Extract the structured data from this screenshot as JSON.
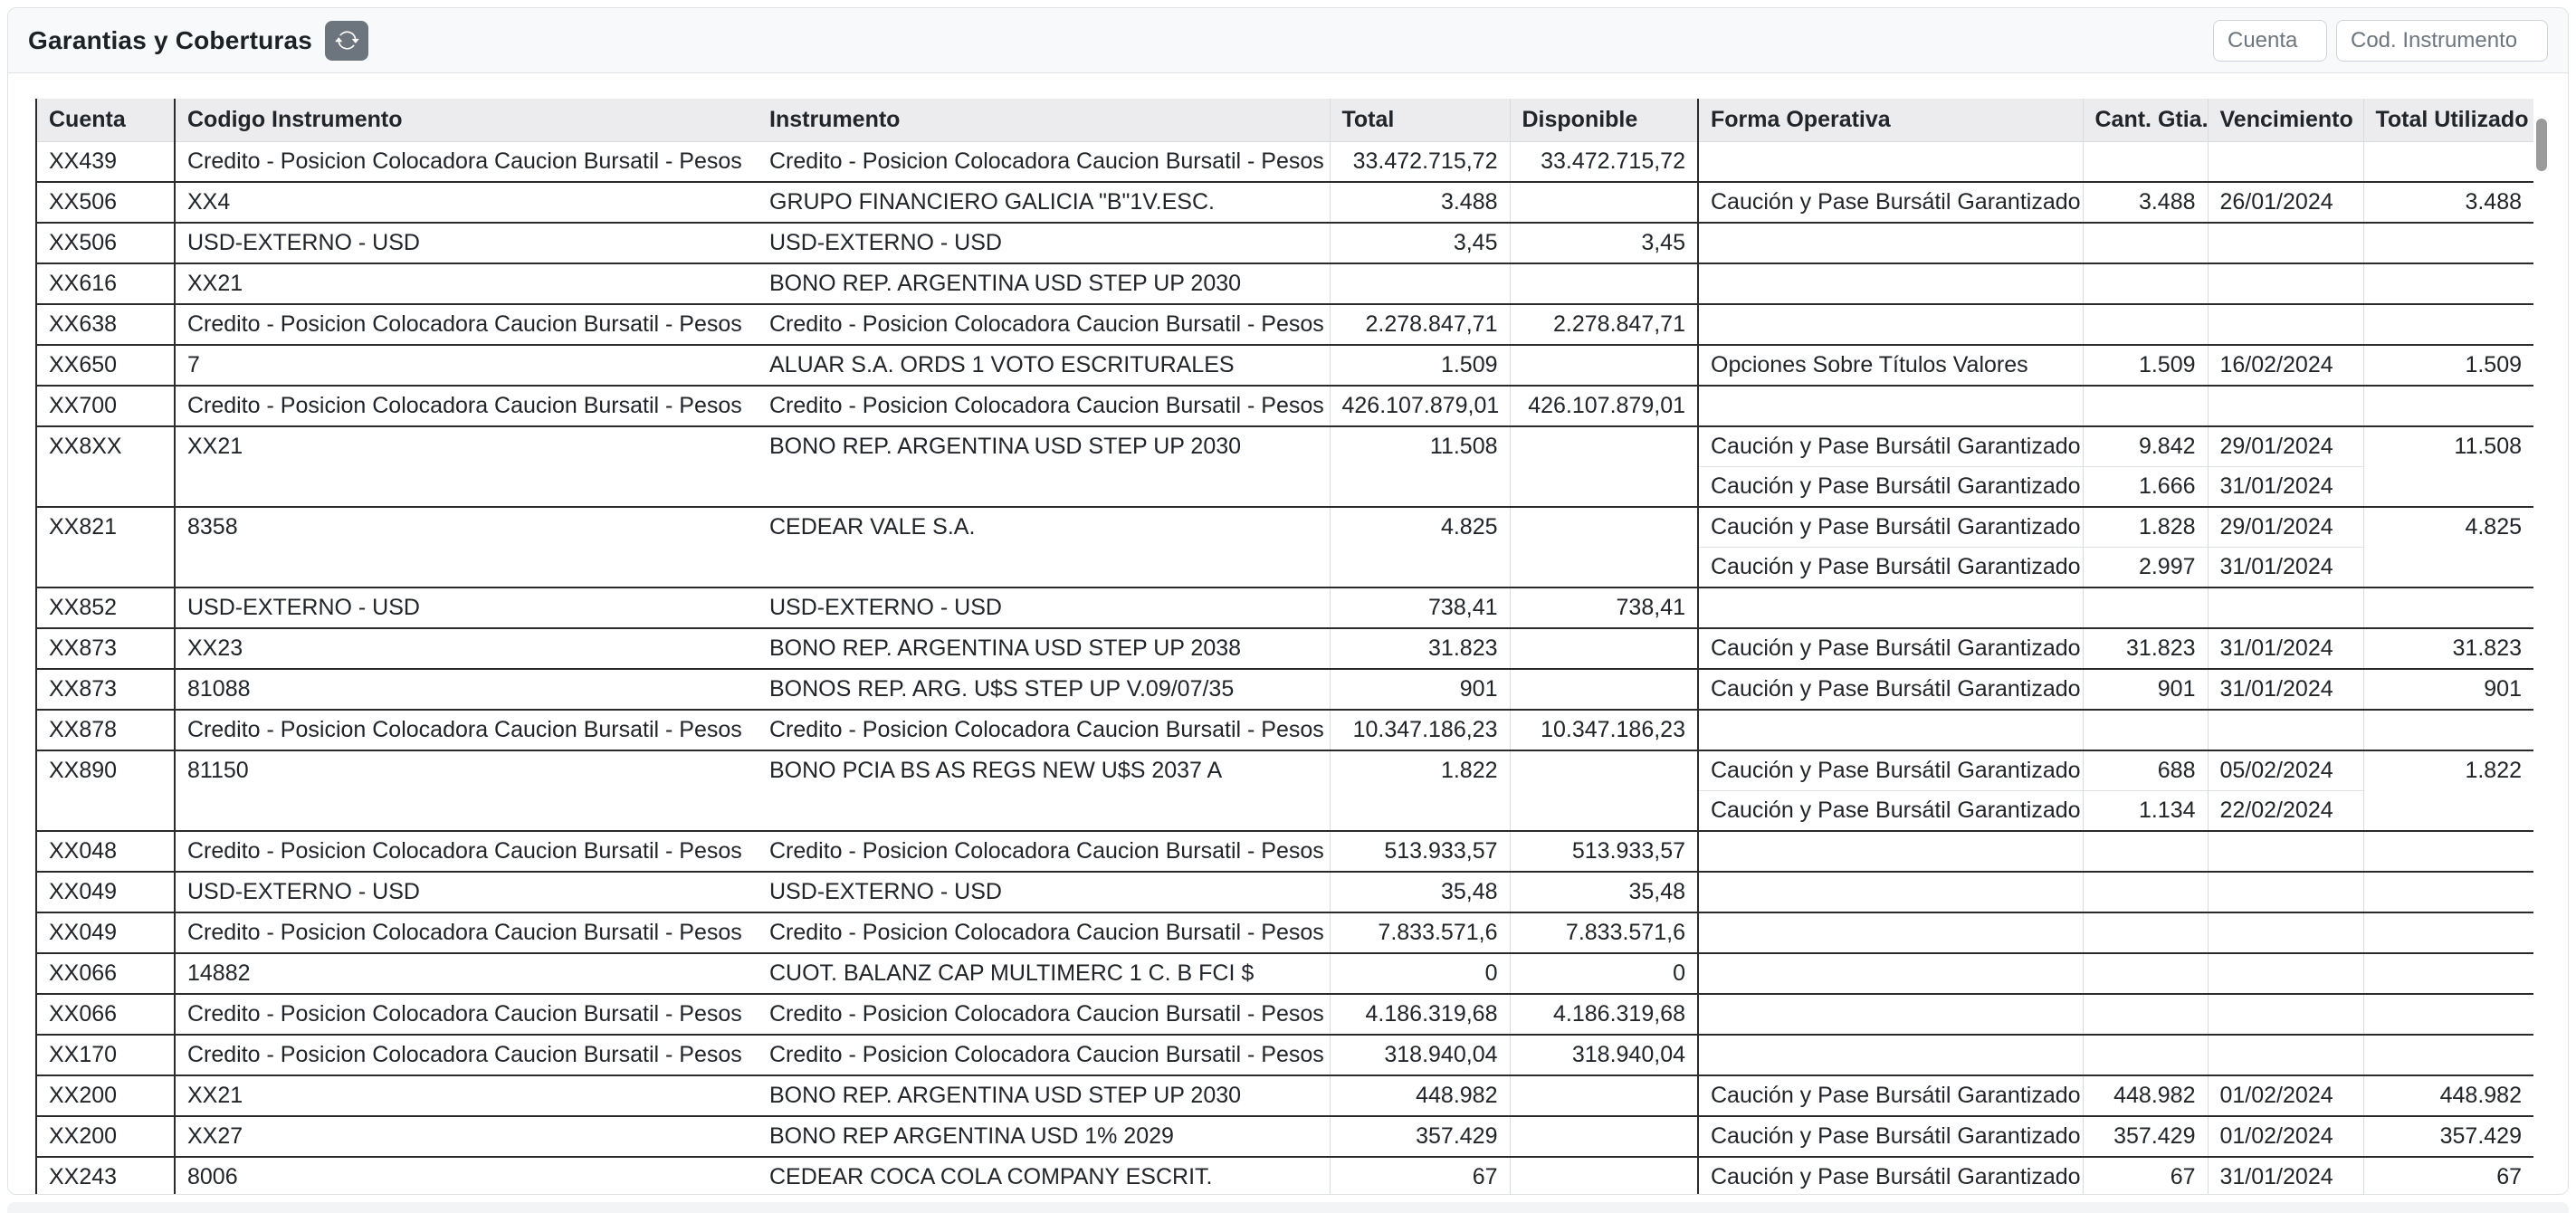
{
  "header": {
    "title": "Garantias y Coberturas",
    "refresh_icon": "refresh-icon",
    "filters": {
      "cuenta_placeholder": "Cuenta",
      "cod_instrumento_placeholder": "Cod. Instrumento"
    }
  },
  "table": {
    "columns": [
      "Cuenta",
      "Codigo Instrumento",
      "Instrumento",
      "Total",
      "Disponible",
      "Forma Operativa",
      "Cant. Gtia.",
      "Vencimiento",
      "Total Utilizado"
    ],
    "rows": [
      {
        "cuenta": "XX439",
        "codigo": "Credito - Posicion Colocadora Caucion Bursatil - Pesos",
        "instrumento": "Credito - Posicion Colocadora Caucion Bursatil - Pesos",
        "total": "33.472.715,72",
        "disponible": "33.472.715,72",
        "total_utilizado": "",
        "operaciones": []
      },
      {
        "cuenta": "XX506",
        "codigo": "XX4",
        "instrumento": "GRUPO FINANCIERO GALICIA \"B\"1V.ESC.",
        "total": "3.488",
        "disponible": "",
        "total_utilizado": "3.488",
        "operaciones": [
          {
            "forma": "Caución y Pase Bursátil Garantizado",
            "cant": "3.488",
            "venc": "26/01/2024"
          }
        ]
      },
      {
        "cuenta": "XX506",
        "codigo": "USD-EXTERNO - USD",
        "instrumento": "USD-EXTERNO - USD",
        "total": "3,45",
        "disponible": "3,45",
        "total_utilizado": "",
        "operaciones": []
      },
      {
        "cuenta": "XX616",
        "codigo": "XX21",
        "instrumento": "BONO REP. ARGENTINA USD STEP UP 2030",
        "total": "",
        "disponible": "",
        "total_utilizado": "",
        "operaciones": []
      },
      {
        "cuenta": "XX638",
        "codigo": "Credito - Posicion Colocadora Caucion Bursatil - Pesos",
        "instrumento": "Credito - Posicion Colocadora Caucion Bursatil - Pesos",
        "total": "2.278.847,71",
        "disponible": "2.278.847,71",
        "total_utilizado": "",
        "operaciones": []
      },
      {
        "cuenta": "XX650",
        "codigo": "7",
        "instrumento": "ALUAR S.A. ORDS 1 VOTO ESCRITURALES",
        "total": "1.509",
        "disponible": "",
        "total_utilizado": "1.509",
        "operaciones": [
          {
            "forma": "Opciones Sobre Títulos Valores",
            "cant": "1.509",
            "venc": "16/02/2024"
          }
        ]
      },
      {
        "cuenta": "XX700",
        "codigo": "Credito - Posicion Colocadora Caucion Bursatil - Pesos",
        "instrumento": "Credito - Posicion Colocadora Caucion Bursatil - Pesos",
        "total": "426.107.879,01",
        "disponible": "426.107.879,01",
        "total_utilizado": "",
        "operaciones": []
      },
      {
        "cuenta": "XX8XX",
        "codigo": "XX21",
        "instrumento": "BONO REP. ARGENTINA USD STEP UP 2030",
        "total": "11.508",
        "disponible": "",
        "total_utilizado": "11.508",
        "operaciones": [
          {
            "forma": "Caución y Pase Bursátil Garantizado",
            "cant": "9.842",
            "venc": "29/01/2024"
          },
          {
            "forma": "Caución y Pase Bursátil Garantizado",
            "cant": "1.666",
            "venc": "31/01/2024"
          }
        ]
      },
      {
        "cuenta": "XX821",
        "codigo": "8358",
        "instrumento": "CEDEAR VALE S.A.",
        "total": "4.825",
        "disponible": "",
        "total_utilizado": "4.825",
        "operaciones": [
          {
            "forma": "Caución y Pase Bursátil Garantizado",
            "cant": "1.828",
            "venc": "29/01/2024"
          },
          {
            "forma": "Caución y Pase Bursátil Garantizado",
            "cant": "2.997",
            "venc": "31/01/2024"
          }
        ]
      },
      {
        "cuenta": "XX852",
        "codigo": "USD-EXTERNO - USD",
        "instrumento": "USD-EXTERNO - USD",
        "total": "738,41",
        "disponible": "738,41",
        "total_utilizado": "",
        "operaciones": []
      },
      {
        "cuenta": "XX873",
        "codigo": "XX23",
        "instrumento": "BONO REP. ARGENTINA USD STEP UP 2038",
        "total": "31.823",
        "disponible": "",
        "total_utilizado": "31.823",
        "operaciones": [
          {
            "forma": "Caución y Pase Bursátil Garantizado",
            "cant": "31.823",
            "venc": "31/01/2024"
          }
        ]
      },
      {
        "cuenta": "XX873",
        "codigo": "81088",
        "instrumento": "BONOS REP. ARG. U$S STEP UP V.09/07/35",
        "total": "901",
        "disponible": "",
        "total_utilizado": "901",
        "operaciones": [
          {
            "forma": "Caución y Pase Bursátil Garantizado",
            "cant": "901",
            "venc": "31/01/2024"
          }
        ]
      },
      {
        "cuenta": "XX878",
        "codigo": "Credito - Posicion Colocadora Caucion Bursatil - Pesos",
        "instrumento": "Credito - Posicion Colocadora Caucion Bursatil - Pesos",
        "total": "10.347.186,23",
        "disponible": "10.347.186,23",
        "total_utilizado": "",
        "operaciones": []
      },
      {
        "cuenta": "XX890",
        "codigo": "81150",
        "instrumento": "BONO PCIA BS AS REGS NEW U$S 2037 A",
        "total": "1.822",
        "disponible": "",
        "total_utilizado": "1.822",
        "operaciones": [
          {
            "forma": "Caución y Pase Bursátil Garantizado",
            "cant": "688",
            "venc": "05/02/2024"
          },
          {
            "forma": "Caución y Pase Bursátil Garantizado",
            "cant": "1.134",
            "venc": "22/02/2024"
          }
        ]
      },
      {
        "cuenta": "XX048",
        "codigo": "Credito - Posicion Colocadora Caucion Bursatil - Pesos",
        "instrumento": "Credito - Posicion Colocadora Caucion Bursatil - Pesos",
        "total": "513.933,57",
        "disponible": "513.933,57",
        "total_utilizado": "",
        "operaciones": []
      },
      {
        "cuenta": "XX049",
        "codigo": "USD-EXTERNO - USD",
        "instrumento": "USD-EXTERNO - USD",
        "total": "35,48",
        "disponible": "35,48",
        "total_utilizado": "",
        "operaciones": []
      },
      {
        "cuenta": "XX049",
        "codigo": "Credito - Posicion Colocadora Caucion Bursatil - Pesos",
        "instrumento": "Credito - Posicion Colocadora Caucion Bursatil - Pesos",
        "total": "7.833.571,6",
        "disponible": "7.833.571,6",
        "total_utilizado": "",
        "operaciones": []
      },
      {
        "cuenta": "XX066",
        "codigo": "14882",
        "instrumento": "CUOT. BALANZ CAP MULTIMERC 1 C. B FCI $",
        "total": "0",
        "disponible": "0",
        "total_utilizado": "",
        "operaciones": []
      },
      {
        "cuenta": "XX066",
        "codigo": "Credito - Posicion Colocadora Caucion Bursatil - Pesos",
        "instrumento": "Credito - Posicion Colocadora Caucion Bursatil - Pesos",
        "total": "4.186.319,68",
        "disponible": "4.186.319,68",
        "total_utilizado": "",
        "operaciones": []
      },
      {
        "cuenta": "XX170",
        "codigo": "Credito - Posicion Colocadora Caucion Bursatil - Pesos",
        "instrumento": "Credito - Posicion Colocadora Caucion Bursatil - Pesos",
        "total": "318.940,04",
        "disponible": "318.940,04",
        "total_utilizado": "",
        "operaciones": []
      },
      {
        "cuenta": "XX200",
        "codigo": "XX21",
        "instrumento": "BONO REP. ARGENTINA USD STEP UP 2030",
        "total": "448.982",
        "disponible": "",
        "total_utilizado": "448.982",
        "operaciones": [
          {
            "forma": "Caución y Pase Bursátil Garantizado",
            "cant": "448.982",
            "venc": "01/02/2024"
          }
        ]
      },
      {
        "cuenta": "XX200",
        "codigo": "XX27",
        "instrumento": "BONO REP ARGENTINA USD 1% 2029",
        "total": "357.429",
        "disponible": "",
        "total_utilizado": "357.429",
        "operaciones": [
          {
            "forma": "Caución y Pase Bursátil Garantizado",
            "cant": "357.429",
            "venc": "01/02/2024"
          }
        ]
      },
      {
        "cuenta": "XX243",
        "codigo": "8006",
        "instrumento": "CEDEAR COCA COLA COMPANY ESCRIT.",
        "total": "67",
        "disponible": "",
        "total_utilizado": "67",
        "operaciones": [
          {
            "forma": "Caución y Pase Bursátil Garantizado",
            "cant": "67",
            "venc": "31/01/2024"
          }
        ]
      }
    ]
  },
  "colors": {
    "button_gray": "#6c757d",
    "card_header_bg": "#f8f9fa",
    "table_header_bg": "#ececee",
    "border_dark": "#2b2b2b",
    "border_light": "#d9dcdf",
    "scrollbar_thumb": "#9b9b9b"
  }
}
